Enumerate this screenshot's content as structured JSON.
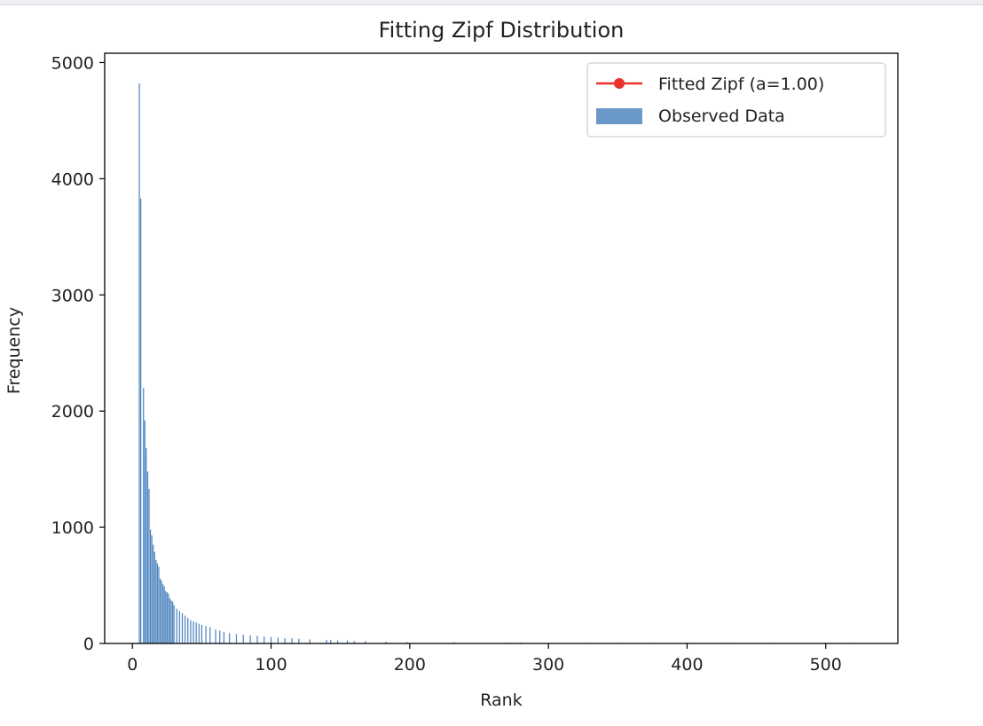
{
  "chart_data": {
    "type": "bar",
    "title": "Fitting Zipf Distribution",
    "xlabel": "Rank",
    "ylabel": "Frequency",
    "xlim": [
      -20,
      552
    ],
    "ylim": [
      0,
      5080
    ],
    "xticks": [
      0,
      100,
      200,
      300,
      400,
      500
    ],
    "yticks": [
      0,
      1000,
      2000,
      3000,
      4000,
      5000
    ],
    "legend_position": "top-right",
    "series": [
      {
        "name": "Fitted Zipf (a=1.00)",
        "type": "line",
        "color": "#e8322a",
        "marker": "circle",
        "x": [],
        "values": []
      },
      {
        "name": "Observed Data",
        "type": "bar",
        "color": "#4f86c0",
        "x": [
          5,
          6,
          8,
          9,
          10,
          11,
          12,
          13,
          14,
          15,
          16,
          17,
          18,
          19,
          20,
          21,
          22,
          23,
          24,
          25,
          26,
          27,
          28,
          29,
          30,
          32,
          34,
          36,
          38,
          40,
          42,
          44,
          46,
          48,
          50,
          53,
          56,
          60,
          63,
          66,
          70,
          75,
          80,
          85,
          90,
          95,
          100,
          105,
          110,
          115,
          120,
          128,
          140,
          143,
          148,
          155,
          160,
          168,
          183,
          198,
          232,
          270,
          280,
          300,
          330,
          350,
          375,
          400,
          430,
          460,
          500,
          520
        ],
        "values": [
          4820,
          3830,
          2200,
          1920,
          1680,
          1480,
          1330,
          980,
          930,
          850,
          790,
          720,
          690,
          660,
          560,
          540,
          510,
          490,
          450,
          440,
          430,
          390,
          370,
          360,
          330,
          300,
          280,
          260,
          240,
          220,
          200,
          190,
          180,
          170,
          160,
          150,
          140,
          120,
          110,
          100,
          90,
          80,
          75,
          70,
          65,
          60,
          55,
          50,
          45,
          45,
          40,
          35,
          30,
          30,
          25,
          25,
          20,
          20,
          15,
          12,
          10,
          8,
          8,
          7,
          6,
          6,
          5,
          5,
          5,
          4,
          4,
          4
        ]
      }
    ]
  }
}
